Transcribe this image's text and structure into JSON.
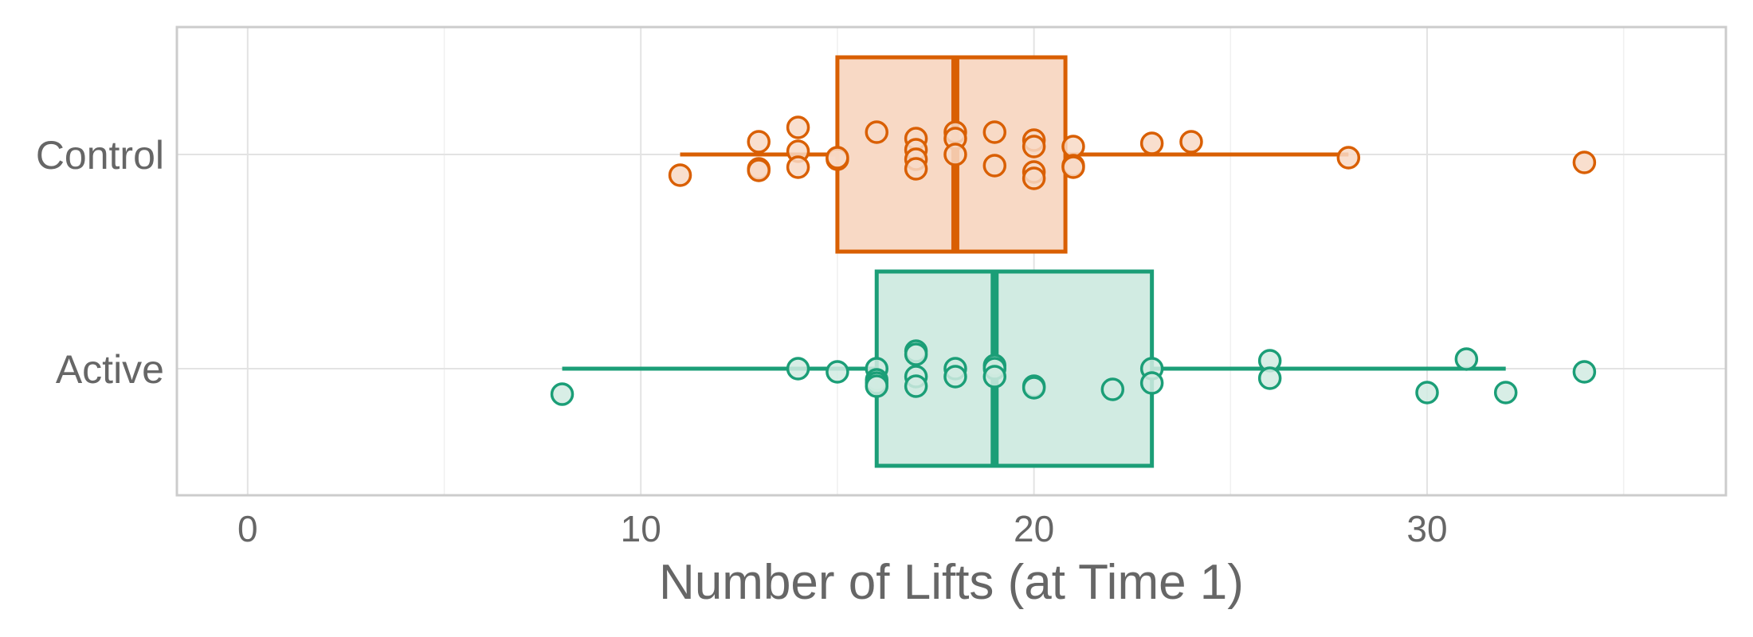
{
  "chart_data": {
    "type": "box",
    "orientation": "horizontal",
    "title": "",
    "xlabel": "Number of Lifts (at Time 1)",
    "ylabel": "",
    "xlim": [
      -1.8,
      37.6
    ],
    "xticks": [
      0,
      10,
      20,
      30
    ],
    "xtick_labels": [
      "0",
      "10",
      "20",
      "30"
    ],
    "grid": true,
    "legend": "none",
    "categories": [
      "Control",
      "Active"
    ],
    "series": [
      {
        "category": "Control",
        "color": "#d95f02",
        "fill": "#f8d9c5",
        "box": {
          "whisker_low": 11,
          "q1": 15,
          "median": 18,
          "q3": 20.8,
          "whisker_high": 28
        },
        "points": [
          {
            "x": 11,
            "j": -0.13
          },
          {
            "x": 13,
            "j": 0.08
          },
          {
            "x": 13,
            "j": -0.09
          },
          {
            "x": 13,
            "j": -0.1
          },
          {
            "x": 14,
            "j": 0.17
          },
          {
            "x": 14,
            "j": 0.02
          },
          {
            "x": 14,
            "j": -0.08
          },
          {
            "x": 15,
            "j": -0.03
          },
          {
            "x": 15,
            "j": -0.02
          },
          {
            "x": 16,
            "j": 0.14
          },
          {
            "x": 17,
            "j": 0.1
          },
          {
            "x": 17,
            "j": 0.03
          },
          {
            "x": 17,
            "j": -0.03
          },
          {
            "x": 17,
            "j": -0.09
          },
          {
            "x": 18,
            "j": 0.14
          },
          {
            "x": 18,
            "j": 0.1
          },
          {
            "x": 18,
            "j": 0.0
          },
          {
            "x": 19,
            "j": 0.14
          },
          {
            "x": 19,
            "j": -0.07
          },
          {
            "x": 20,
            "j": 0.09
          },
          {
            "x": 20,
            "j": 0.05
          },
          {
            "x": 20,
            "j": -0.11
          },
          {
            "x": 20,
            "j": -0.15
          },
          {
            "x": 21,
            "j": 0.05
          },
          {
            "x": 21,
            "j": -0.07
          },
          {
            "x": 21,
            "j": -0.08
          },
          {
            "x": 23,
            "j": 0.07
          },
          {
            "x": 24,
            "j": 0.08
          },
          {
            "x": 28,
            "j": -0.02
          },
          {
            "x": 34,
            "j": -0.05
          }
        ]
      },
      {
        "category": "Active",
        "color": "#1b9e77",
        "fill": "#d1ebe2",
        "box": {
          "whisker_low": 8,
          "q1": 16,
          "median": 19,
          "q3": 23,
          "whisker_high": 32
        },
        "points": [
          {
            "x": 8,
            "j": -0.16
          },
          {
            "x": 14,
            "j": 0.0
          },
          {
            "x": 15,
            "j": -0.02
          },
          {
            "x": 16,
            "j": 0.0
          },
          {
            "x": 16,
            "j": -0.07
          },
          {
            "x": 16,
            "j": -0.09
          },
          {
            "x": 16,
            "j": -0.11
          },
          {
            "x": 17,
            "j": 0.11
          },
          {
            "x": 17,
            "j": 0.09
          },
          {
            "x": 17,
            "j": -0.05
          },
          {
            "x": 17,
            "j": -0.11
          },
          {
            "x": 18,
            "j": 0.0
          },
          {
            "x": 18,
            "j": -0.05
          },
          {
            "x": 19,
            "j": 0.02
          },
          {
            "x": 19,
            "j": 0.0
          },
          {
            "x": 19,
            "j": -0.05
          },
          {
            "x": 20,
            "j": -0.11
          },
          {
            "x": 20,
            "j": -0.12
          },
          {
            "x": 22,
            "j": -0.13
          },
          {
            "x": 23,
            "j": 0.0
          },
          {
            "x": 23,
            "j": -0.09
          },
          {
            "x": 26,
            "j": 0.05
          },
          {
            "x": 26,
            "j": -0.06
          },
          {
            "x": 30,
            "j": -0.15
          },
          {
            "x": 31,
            "j": 0.06
          },
          {
            "x": 32,
            "j": -0.15
          },
          {
            "x": 34,
            "j": -0.02
          }
        ]
      }
    ]
  }
}
